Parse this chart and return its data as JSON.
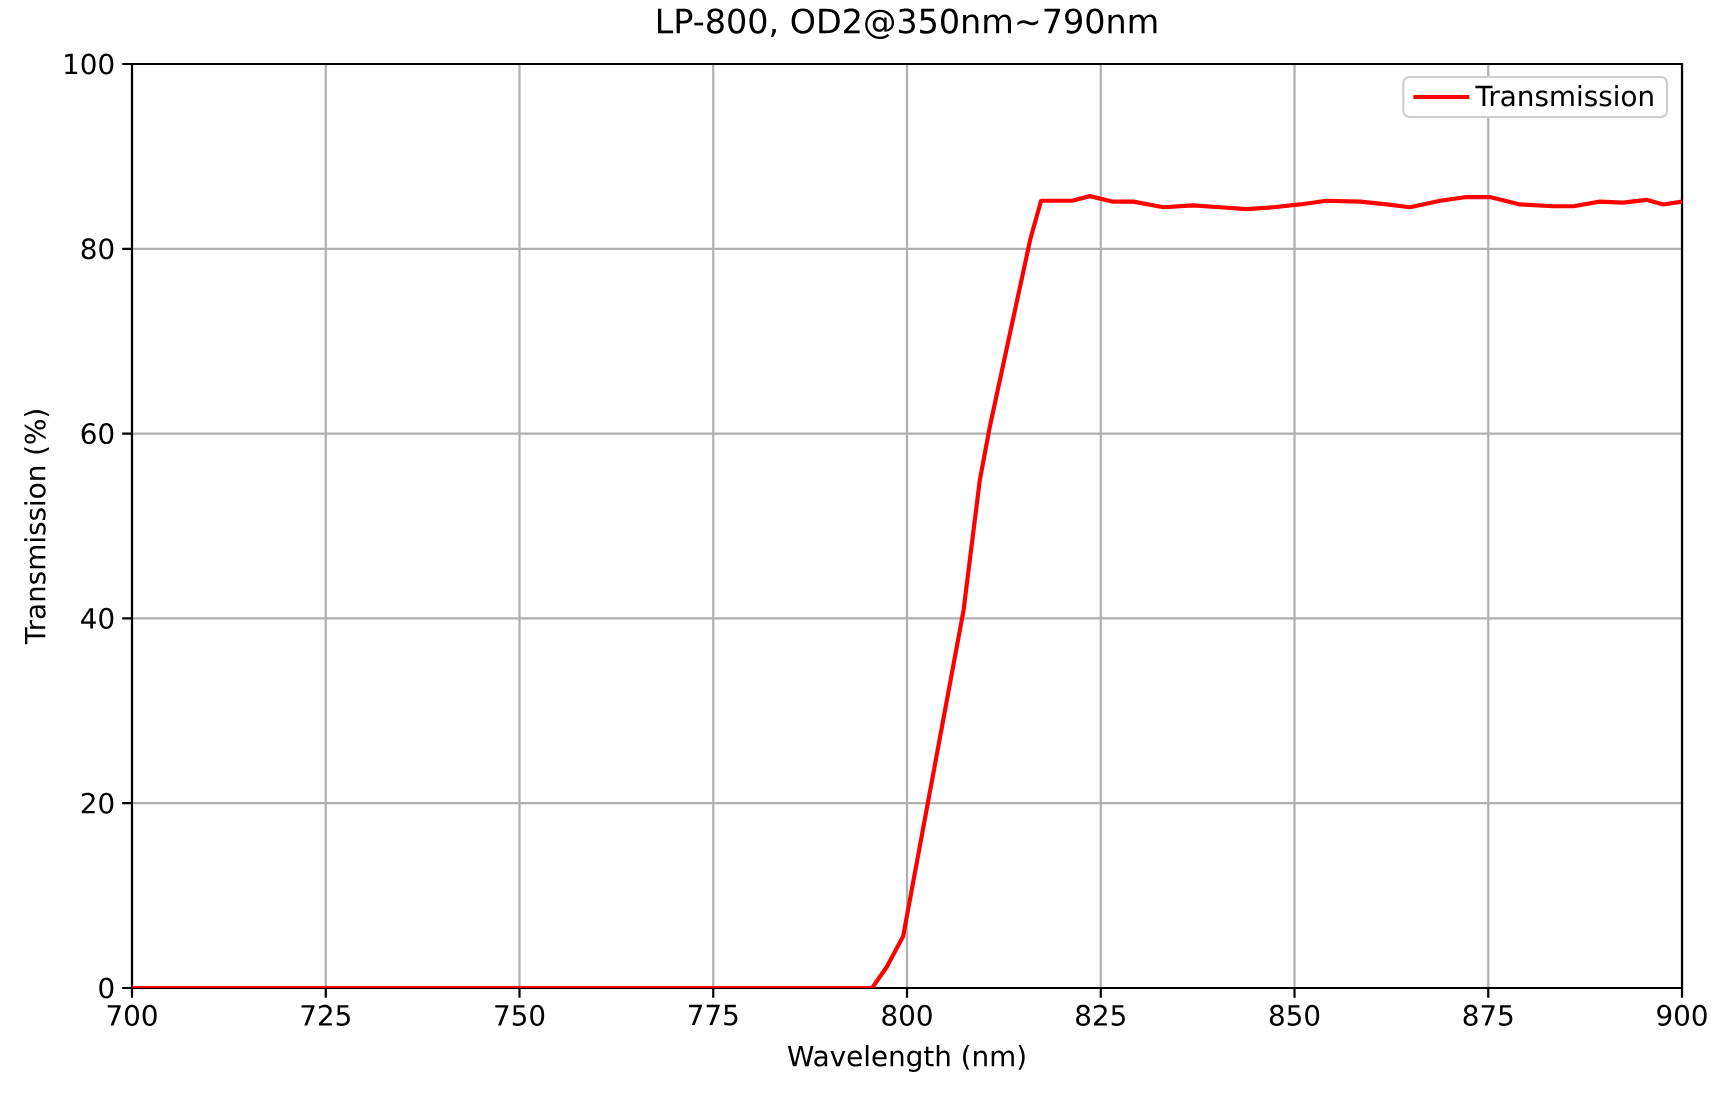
{
  "chart_data": {
    "type": "line",
    "title": "LP-800, OD2@350nm~790nm",
    "xlabel": "Wavelength (nm)",
    "ylabel": "Transmission (%)",
    "x": [
      700,
      750,
      795.5,
      797.4,
      799.5,
      807.3,
      809.4,
      810.7,
      815.9,
      817.3,
      821.3,
      823.6,
      826.6,
      829.2,
      833.1,
      836.9,
      840.4,
      843.8,
      847.3,
      850.7,
      854.1,
      858.5,
      861.9,
      864.9,
      868.8,
      872.2,
      875.2,
      879.1,
      883.4,
      886,
      889.4,
      892.4,
      895.4,
      897.6,
      900
    ],
    "series": [
      {
        "name": "Transmission",
        "color": "#ff0000",
        "values": [
          0,
          0,
          0,
          2.3,
          5.6,
          40.9,
          55,
          60.8,
          81,
          85.2,
          85.2,
          85.7,
          85.1,
          85.1,
          84.5,
          84.7,
          84.5,
          84.3,
          84.5,
          84.8,
          85.2,
          85.1,
          84.8,
          84.5,
          85.2,
          85.6,
          85.6,
          84.8,
          84.6,
          84.6,
          85.1,
          85,
          85.3,
          84.8,
          85.1
        ]
      }
    ],
    "xlim": [
      700,
      900
    ],
    "ylim": [
      0,
      100
    ],
    "xticks": [
      700,
      725,
      750,
      775,
      800,
      825,
      850,
      875,
      900
    ],
    "yticks": [
      0,
      20,
      40,
      60,
      80,
      100
    ],
    "grid": true,
    "legend": "top right",
    "line_style": "solid"
  }
}
